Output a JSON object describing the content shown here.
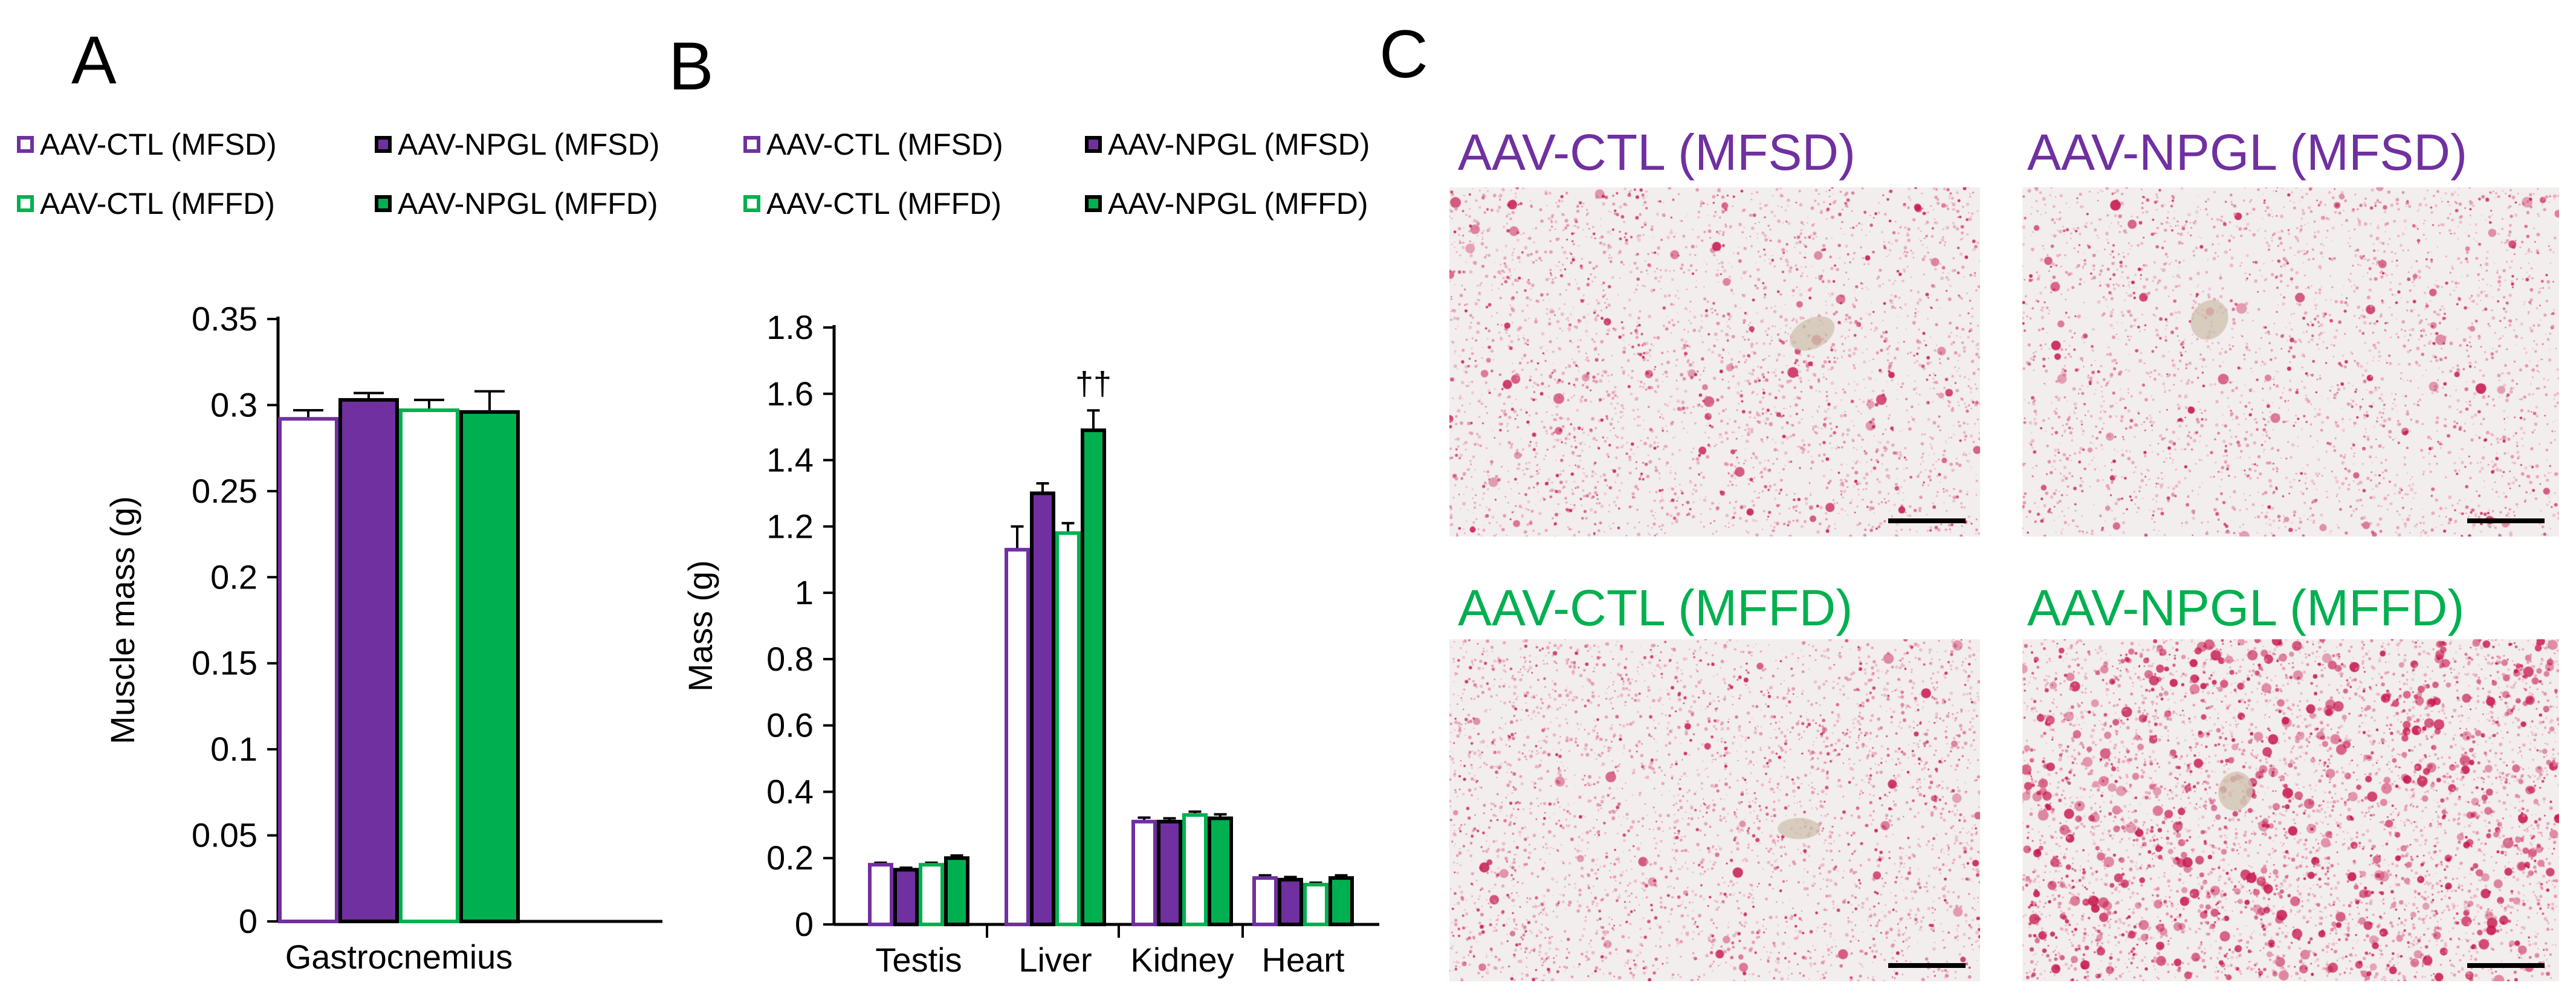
{
  "panels": {
    "a": "A",
    "b": "B",
    "c": "C"
  },
  "colors": {
    "purple": "#7030a0",
    "green": "#00b050",
    "white": "#ffffff",
    "axis": "#000000",
    "tissue_bg": "#f3eeee",
    "stain_light": "#e58aa6",
    "stain_dark": "#c8174d",
    "vessel": "#cfc3b0"
  },
  "legend": [
    {
      "label": "AAV-CTL (MFSD)",
      "fill": "#ffffff",
      "border": "#7030a0"
    },
    {
      "label": "AAV-NPGL (MFSD)",
      "fill": "#7030a0",
      "border": "#000000"
    },
    {
      "label": "AAV-CTL (MFFD)",
      "fill": "#ffffff",
      "border": "#00b050"
    },
    {
      "label": "AAV-NPGL (MFFD)",
      "fill": "#00b050",
      "border": "#000000"
    }
  ],
  "chart_data": [
    {
      "type": "bar",
      "panel": "A",
      "ylabel": "Muscle mass (g)",
      "xlabel": "",
      "ylim": [
        0,
        0.35
      ],
      "yticks": [
        "0",
        "0.05",
        "0.1",
        "0.15",
        "0.2",
        "0.25",
        "0.3",
        "0.35"
      ],
      "tick_step": 0.05,
      "categories": [
        "Gastrocnemius"
      ],
      "series": [
        {
          "name": "AAV-CTL (MFSD)",
          "fill": "#ffffff",
          "stroke": "#7030a0",
          "values": [
            0.292
          ],
          "errors": [
            0.005
          ]
        },
        {
          "name": "AAV-NPGL (MFSD)",
          "fill": "#7030a0",
          "stroke": "#000000",
          "values": [
            0.303
          ],
          "errors": [
            0.004
          ]
        },
        {
          "name": "AAV-CTL (MFFD)",
          "fill": "#ffffff",
          "stroke": "#00b050",
          "values": [
            0.297
          ],
          "errors": [
            0.006
          ]
        },
        {
          "name": "AAV-NPGL (MFFD)",
          "fill": "#00b050",
          "stroke": "#000000",
          "values": [
            0.296
          ],
          "errors": [
            0.012
          ]
        }
      ],
      "annotations": []
    },
    {
      "type": "bar",
      "panel": "B",
      "ylabel": "Mass (g)",
      "xlabel": "",
      "ylim": [
        0,
        1.8
      ],
      "yticks": [
        "0",
        "0.2",
        "0.4",
        "0.6",
        "0.8",
        "1",
        "1.2",
        "1.4",
        "1.6",
        "1.8"
      ],
      "tick_step": 0.2,
      "categories": [
        "Testis",
        "Liver",
        "Kidney",
        "Heart"
      ],
      "series": [
        {
          "name": "AAV-CTL (MFSD)",
          "fill": "#ffffff",
          "stroke": "#7030a0",
          "values": [
            0.18,
            1.13,
            0.31,
            0.14
          ],
          "errors": [
            0.006,
            0.07,
            0.012,
            0.008
          ]
        },
        {
          "name": "AAV-NPGL (MFSD)",
          "fill": "#7030a0",
          "stroke": "#000000",
          "values": [
            0.165,
            1.3,
            0.31,
            0.135
          ],
          "errors": [
            0.006,
            0.03,
            0.01,
            0.008
          ]
        },
        {
          "name": "AAV-CTL (MFFD)",
          "fill": "#ffffff",
          "stroke": "#00b050",
          "values": [
            0.18,
            1.18,
            0.33,
            0.12
          ],
          "errors": [
            0.006,
            0.03,
            0.01,
            0.006
          ]
        },
        {
          "name": "AAV-NPGL (MFFD)",
          "fill": "#00b050",
          "stroke": "#000000",
          "values": [
            0.2,
            1.49,
            0.32,
            0.14
          ],
          "errors": [
            0.008,
            0.06,
            0.012,
            0.008
          ]
        }
      ],
      "annotations": [
        {
          "category": "Liver",
          "series": 3,
          "text": "††"
        }
      ]
    }
  ],
  "micrographs": [
    {
      "title": "AAV-CTL (MFSD)",
      "color": "#7030a0",
      "density": 0.55,
      "big": 0.02,
      "seed": 11
    },
    {
      "title": "AAV-NPGL (MFSD)",
      "color": "#7030a0",
      "density": 0.5,
      "big": 0.02,
      "seed": 23
    },
    {
      "title": "AAV-CTL (MFFD)",
      "color": "#00b050",
      "density": 0.6,
      "big": 0.015,
      "seed": 37
    },
    {
      "title": "AAV-NPGL (MFFD)",
      "color": "#00b050",
      "density": 0.8,
      "big": 0.12,
      "seed": 53
    }
  ]
}
